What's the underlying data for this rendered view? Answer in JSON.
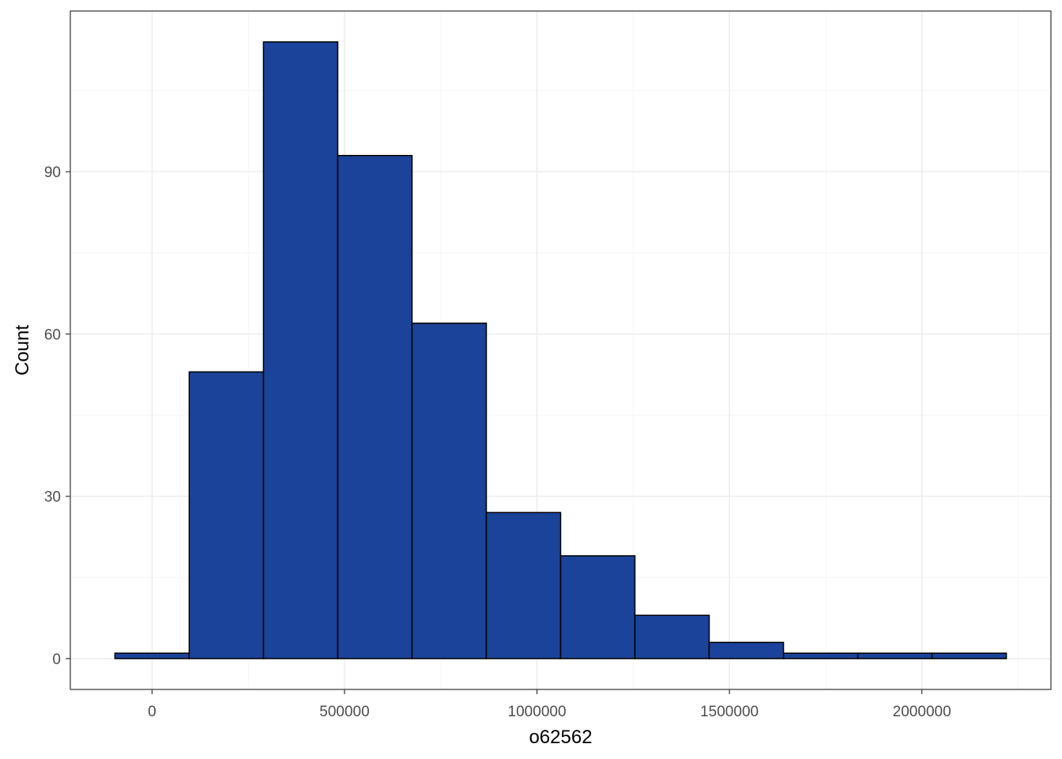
{
  "chart_data": {
    "type": "histogram",
    "title": "",
    "xlabel": "o62562",
    "ylabel": "Count",
    "bin_width": 193000,
    "bins": [
      {
        "start": -96500,
        "end": 96500,
        "count": 1
      },
      {
        "start": 96500,
        "end": 289500,
        "count": 53
      },
      {
        "start": 289500,
        "end": 482500,
        "count": 114
      },
      {
        "start": 482500,
        "end": 675500,
        "count": 93
      },
      {
        "start": 675500,
        "end": 868500,
        "count": 62
      },
      {
        "start": 868500,
        "end": 1061500,
        "count": 27
      },
      {
        "start": 1061500,
        "end": 1254500,
        "count": 19
      },
      {
        "start": 1254500,
        "end": 1447500,
        "count": 8
      },
      {
        "start": 1447500,
        "end": 1640500,
        "count": 3
      },
      {
        "start": 1640500,
        "end": 1833500,
        "count": 1
      },
      {
        "start": 1833500,
        "end": 2026500,
        "count": 1
      },
      {
        "start": 2026500,
        "end": 2219500,
        "count": 1
      }
    ],
    "x_ticks": [
      0,
      500000,
      1000000,
      1500000,
      2000000
    ],
    "x_tick_labels": [
      "0",
      "500000",
      "1000000",
      "1500000",
      "2000000"
    ],
    "y_ticks": [
      0,
      30,
      60,
      90
    ],
    "y_tick_labels": [
      "0",
      "30",
      "60",
      "90"
    ],
    "xlim": [
      -212300,
      2335300
    ],
    "ylim": [
      -5.7,
      119.7
    ],
    "grid": true,
    "colors": {
      "bar_fill": "#1A4399",
      "bar_stroke": "#000000",
      "grid_major": "#EBEBEB",
      "grid_minor": "#F5F5F5",
      "panel_border": "#333333"
    }
  }
}
